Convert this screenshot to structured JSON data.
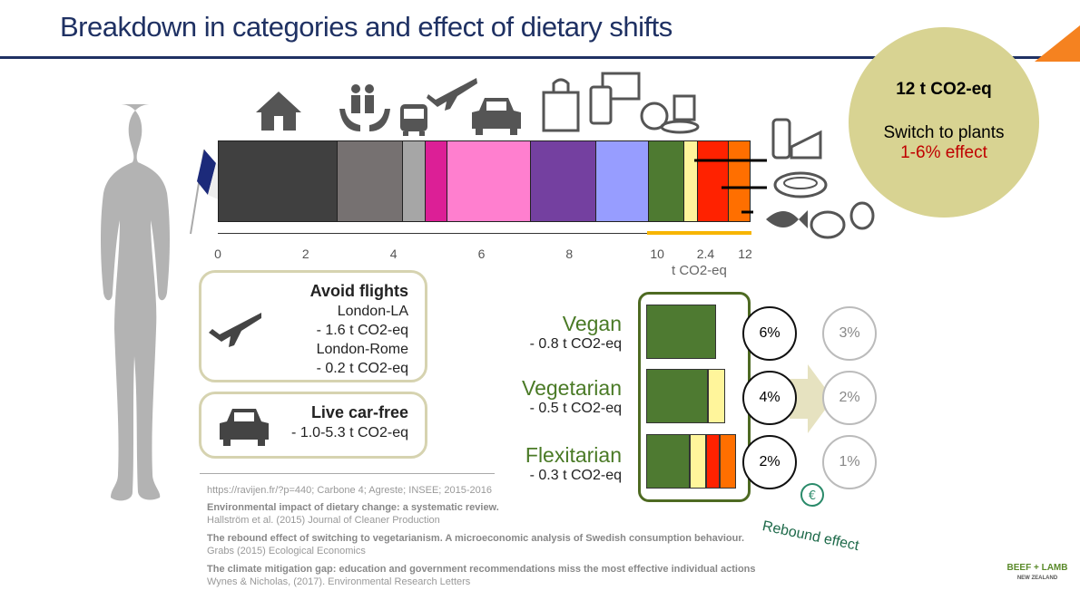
{
  "title": "Breakdown in categories and effect of dietary shifts",
  "chart_data": {
    "type": "bar",
    "orientation": "horizontal-stacked",
    "xlabel": "t CO2-eq",
    "xlim": [
      0,
      12
    ],
    "tick_labels": [
      "0",
      "2",
      "4",
      "6",
      "8",
      "10",
      "2.4",
      "12"
    ],
    "segments": [
      {
        "icon": "house-icon",
        "start": 0,
        "end": 2.7,
        "color": "#404040"
      },
      {
        "icon": "family-care-icon",
        "start": 2.7,
        "end": 4.2,
        "color": "#767171"
      },
      {
        "icon": "bus-icon",
        "start": 4.2,
        "end": 4.7,
        "color": "#a6a6a6"
      },
      {
        "icon": "airplane-icon",
        "start": 4.7,
        "end": 5.2,
        "color": "#dc1f96"
      },
      {
        "icon": "car-icon",
        "start": 5.2,
        "end": 7.1,
        "color": "#ff7fcf"
      },
      {
        "icon": "shopping-bag-icon",
        "start": 7.1,
        "end": 8.6,
        "color": "#7440a0"
      },
      {
        "icon": "devices-icon",
        "start": 8.6,
        "end": 9.8,
        "color": "#979dff"
      },
      {
        "icon": "fruit-veg-icon",
        "start": 9.8,
        "end": 10.6,
        "color": "#4e7a31"
      },
      {
        "icon": "dairy-icon",
        "start": 10.6,
        "end": 10.9,
        "color": "#fff59b"
      },
      {
        "icon": "meat-icon",
        "start": 10.9,
        "end": 11.6,
        "color": "#ff2200"
      },
      {
        "icon": "fish-poultry-egg-icon",
        "start": 11.6,
        "end": 12.1,
        "color": "#ff6f00"
      }
    ],
    "highlight_range": [
      9.8,
      12.1
    ],
    "highlight_color": "#f7b500"
  },
  "circle": {
    "total": "12 t CO2-eq",
    "line1": "Switch to plants",
    "line2": "1-6% effect",
    "accent": "#c00000"
  },
  "flights": {
    "title": "Avoid flights",
    "r1": "London-LA",
    "r1v": "- 1.6 t CO2-eq",
    "r2": "London-Rome",
    "r2v": "- 0.2 t CO2-eq"
  },
  "car": {
    "title": "Live car-free",
    "value": "- 1.0-5.3 t CO2-eq"
  },
  "diets": [
    {
      "name": "Vegan",
      "value": "- 0.8 t CO2-eq",
      "effect": "6%",
      "rebound": "3%"
    },
    {
      "name": "Vegetarian",
      "value": "- 0.5 t CO2-eq",
      "effect": "4%",
      "rebound": "2%"
    },
    {
      "name": "Flexitarian",
      "value": "- 0.3 t CO2-eq",
      "effect": "2%",
      "rebound": "1%"
    }
  ],
  "rebound_label": "Rebound effect",
  "refs": [
    {
      "t": "",
      "s": "https://ravijen.fr/?p=440; Carbone 4;  Agreste; INSEE; 2015-2016"
    },
    {
      "t": "Environmental impact of dietary change: a systematic review.",
      "s": "Hallström et al. (2015) Journal of Cleaner Production"
    },
    {
      "t": "The rebound effect of switching to vegetarianism. A microeconomic analysis of Swedish consumption behaviour.",
      "s": "Grabs (2015) Ecological Economics"
    },
    {
      "t": "The climate mitigation gap: education and government recommendations miss the most effective individual actions",
      "s": "Wynes & Nicholas, (2017). Environmental Research Letters"
    }
  ],
  "logo": "BEEF + LAMB NEW ZEALAND"
}
